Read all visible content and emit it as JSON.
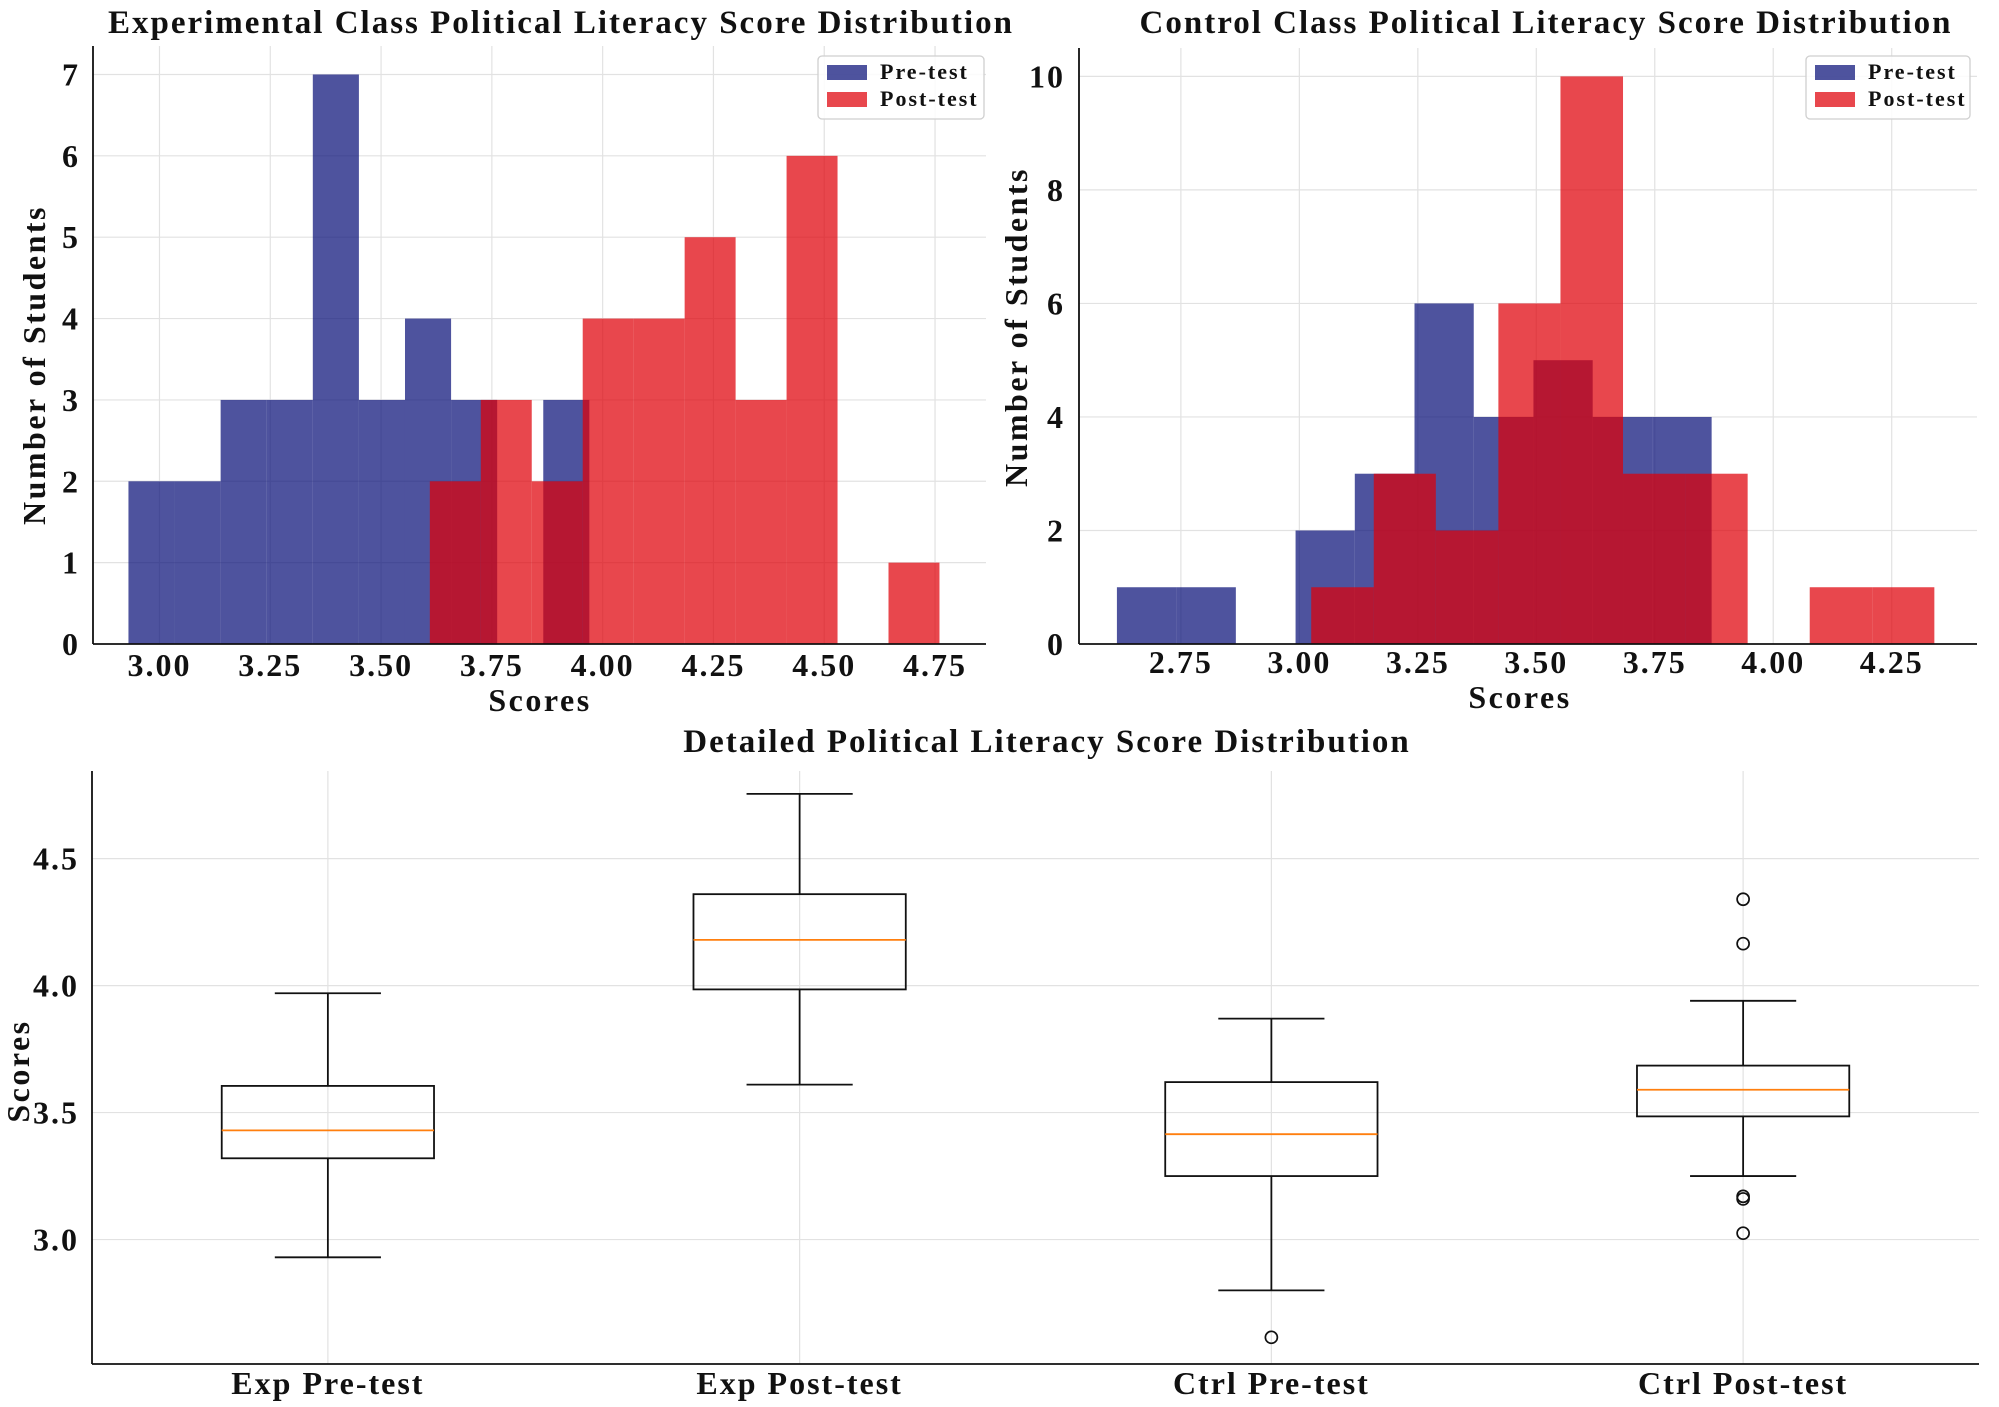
{
  "chart_data": [
    {
      "type": "bar",
      "title": "Experimental Class Political Literacy Score Distribution",
      "xlabel": "Scores",
      "ylabel": "Number of Students",
      "xlim": [
        2.85,
        4.865
      ],
      "ylim": [
        0,
        7.35
      ],
      "xticks": [
        "3.00",
        "3.25",
        "3.50",
        "3.75",
        "4.00",
        "4.25",
        "4.50",
        "4.75"
      ],
      "yticks": [
        "0",
        "1",
        "2",
        "3",
        "4",
        "5",
        "6",
        "7"
      ],
      "grid": true,
      "legend": "top-right",
      "series": [
        {
          "name": "Pre-test",
          "color": "#0a1078",
          "bin_edges": [
            2.93,
            3.034,
            3.138,
            3.242,
            3.346,
            3.45,
            3.554,
            3.658,
            3.762,
            3.866,
            3.97
          ],
          "values": [
            2,
            2,
            3,
            3,
            7,
            3,
            4,
            3,
            0,
            3
          ]
        },
        {
          "name": "Post-test",
          "color": "#df0008",
          "bin_edges": [
            3.61,
            3.725,
            3.84,
            3.955,
            4.07,
            4.185,
            4.3,
            4.415,
            4.53,
            4.645,
            4.76
          ],
          "values": [
            2,
            3,
            2,
            4,
            4,
            5,
            3,
            6,
            0,
            1
          ]
        }
      ]
    },
    {
      "type": "bar",
      "title": "Control Class Political Literacy Score Distribution",
      "xlabel": "Scores",
      "ylabel": "Number of Students",
      "xlim": [
        2.535,
        4.43
      ],
      "ylim": [
        0,
        10.5
      ],
      "xticks": [
        "2.75",
        "3.00",
        "3.25",
        "3.50",
        "3.75",
        "4.00",
        "4.25"
      ],
      "yticks": [
        "0",
        "2",
        "4",
        "6",
        "8",
        "10"
      ],
      "grid": true,
      "legend": "top-right",
      "series": [
        {
          "name": "Pre-test",
          "color": "#0a1078",
          "bin_edges": [
            2.615,
            2.741,
            2.866,
            2.992,
            3.117,
            3.243,
            3.368,
            3.494,
            3.619,
            3.745,
            3.87
          ],
          "values": [
            1,
            1,
            0,
            2,
            3,
            6,
            4,
            5,
            4,
            4
          ]
        },
        {
          "name": "Post-test",
          "color": "#df0008",
          "bin_edges": [
            3.025,
            3.157,
            3.288,
            3.42,
            3.551,
            3.683,
            3.814,
            3.946,
            4.077,
            4.209,
            4.34
          ],
          "values": [
            1,
            3,
            2,
            6,
            10,
            3,
            3,
            0,
            1,
            1
          ]
        }
      ]
    },
    {
      "type": "box",
      "title": "Detailed Political Literacy Score Distribution",
      "ylabel": "Scores",
      "ylim": [
        2.51,
        4.845
      ],
      "yticks": [
        "3.0",
        "3.5",
        "4.0",
        "4.5"
      ],
      "grid": true,
      "median_color": "#ff7f0e",
      "categories": [
        "Exp Pre-test",
        "Exp Post-test",
        "Ctrl Pre-test",
        "Ctrl Post-test"
      ],
      "boxes": [
        {
          "whisker_low": 2.93,
          "q1": 3.32,
          "median": 3.43,
          "q3": 3.605,
          "whisker_high": 3.97,
          "outliers": []
        },
        {
          "whisker_low": 3.61,
          "q1": 3.985,
          "median": 4.18,
          "q3": 4.36,
          "whisker_high": 4.755,
          "outliers": []
        },
        {
          "whisker_low": 2.8,
          "q1": 3.25,
          "median": 3.415,
          "q3": 3.62,
          "whisker_high": 3.87,
          "outliers": [
            2.615
          ]
        },
        {
          "whisker_low": 3.25,
          "q1": 3.485,
          "median": 3.59,
          "q3": 3.685,
          "whisker_high": 3.94,
          "outliers": [
            4.34,
            4.165,
            3.17,
            3.16,
            3.025
          ]
        }
      ]
    }
  ]
}
